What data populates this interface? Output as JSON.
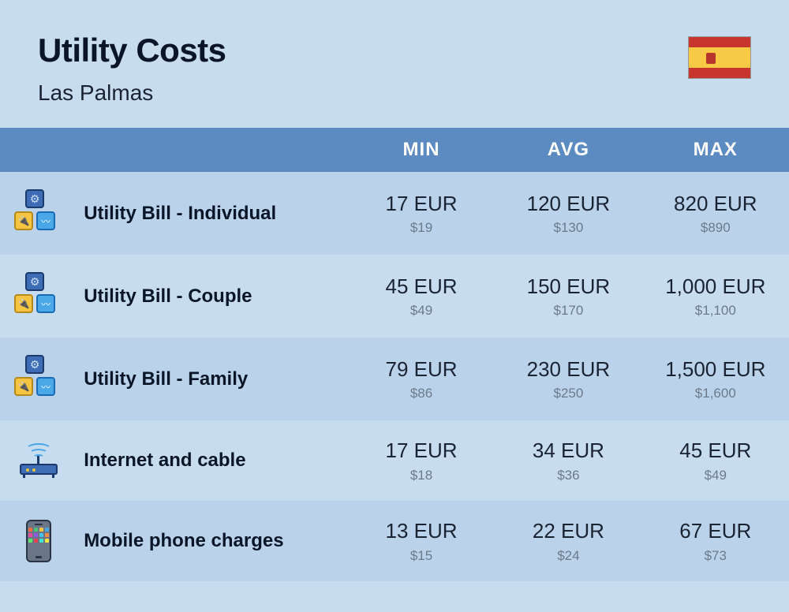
{
  "header": {
    "title": "Utility Costs",
    "subtitle": "Las Palmas",
    "flag_colors": {
      "red": "#c8352e",
      "yellow": "#f7c945"
    }
  },
  "columns": {
    "min": "MIN",
    "avg": "AVG",
    "max": "MAX"
  },
  "theme": {
    "page_bg": "#c8dcf0",
    "header_row_bg": "#5b8bc0",
    "header_text": "#ffffff",
    "row_alt_a": "#bbd3ea",
    "row_alt_b": "#c8dcf0",
    "primary_text": "#0a1628",
    "value_text": "#1a2332",
    "secondary_text": "#6b7a8a",
    "title_fontsize": 42,
    "subtitle_fontsize": 28,
    "header_fontsize": 24,
    "label_fontsize": 24,
    "eur_fontsize": 26,
    "usd_fontsize": 17
  },
  "rows": [
    {
      "icon": "utility",
      "label": "Utility Bill - Individual",
      "min": {
        "eur": "17 EUR",
        "usd": "$19"
      },
      "avg": {
        "eur": "120 EUR",
        "usd": "$130"
      },
      "max": {
        "eur": "820 EUR",
        "usd": "$890"
      }
    },
    {
      "icon": "utility",
      "label": "Utility Bill - Couple",
      "min": {
        "eur": "45 EUR",
        "usd": "$49"
      },
      "avg": {
        "eur": "150 EUR",
        "usd": "$170"
      },
      "max": {
        "eur": "1,000 EUR",
        "usd": "$1,100"
      }
    },
    {
      "icon": "utility",
      "label": "Utility Bill - Family",
      "min": {
        "eur": "79 EUR",
        "usd": "$86"
      },
      "avg": {
        "eur": "230 EUR",
        "usd": "$250"
      },
      "max": {
        "eur": "1,500 EUR",
        "usd": "$1,600"
      }
    },
    {
      "icon": "router",
      "label": "Internet and cable",
      "min": {
        "eur": "17 EUR",
        "usd": "$18"
      },
      "avg": {
        "eur": "34 EUR",
        "usd": "$36"
      },
      "max": {
        "eur": "45 EUR",
        "usd": "$49"
      }
    },
    {
      "icon": "phone",
      "label": "Mobile phone charges",
      "min": {
        "eur": "13 EUR",
        "usd": "$15"
      },
      "avg": {
        "eur": "22 EUR",
        "usd": "$24"
      },
      "max": {
        "eur": "67 EUR",
        "usd": "$73"
      }
    }
  ],
  "phone_app_colors": [
    "#f56c42",
    "#4ac27a",
    "#f5c542",
    "#4aa8e8",
    "#e84a9c",
    "#8a5ae8",
    "#42c2f5",
    "#f58a42",
    "#5ae86a",
    "#e8425a",
    "#42e8d6",
    "#f5e842"
  ]
}
